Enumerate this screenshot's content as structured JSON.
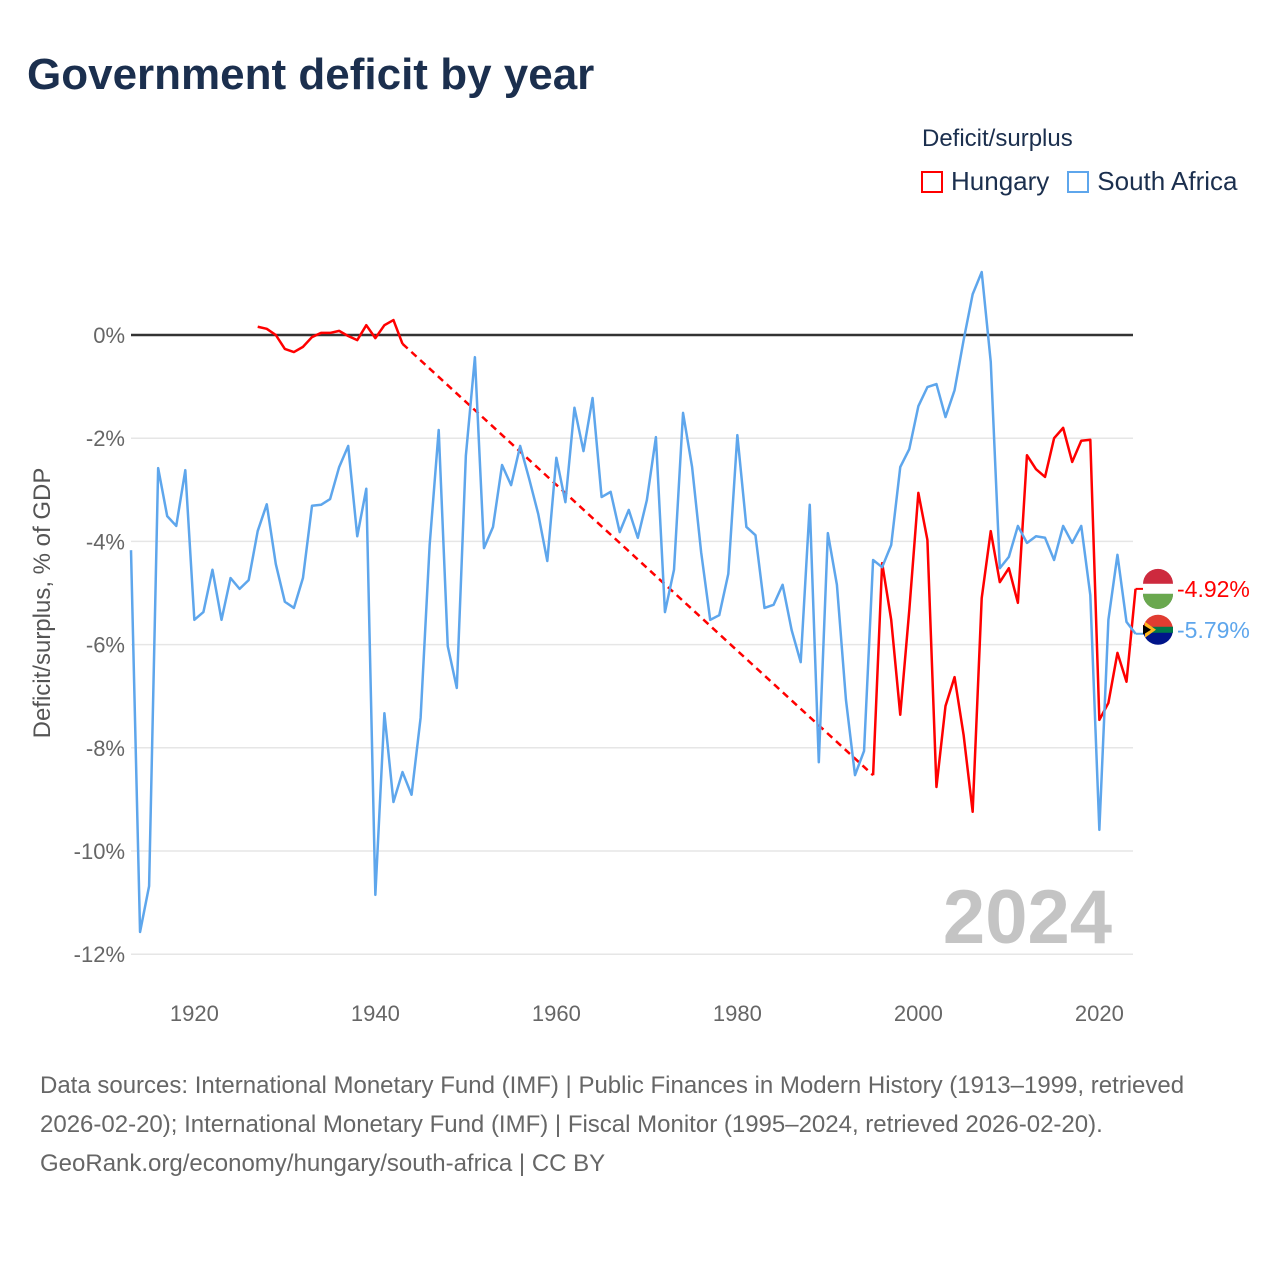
{
  "title": "Government deficit by year",
  "legend": {
    "title": "Deficit/surplus",
    "items": [
      {
        "name": "Hungary",
        "color": "#ff0000"
      },
      {
        "name": "South Africa",
        "color": "#5ea6ec"
      }
    ]
  },
  "year_watermark": "2024",
  "footer": {
    "sources": "Data sources: International Monetary Fund (IMF) | Public Finances in Modern History (1913–1999, retrieved 2026-02-20); International Monetary Fund (IMF) | Fiscal Monitor (1995–2024, retrieved 2026-02-20).",
    "credit": "GeoRank.org/economy/hungary/south-africa | CC BY"
  },
  "chart_data": {
    "type": "line",
    "title": "Government deficit by year",
    "ylabel": "Deficit/surplus, % of GDP",
    "xlim": [
      1913,
      2024
    ],
    "ylim": [
      -12.6,
      1.6
    ],
    "xticks": [
      1920,
      1940,
      1960,
      1980,
      2000,
      2020
    ],
    "yticks": [
      0,
      -2,
      -4,
      -6,
      -8,
      -10,
      -12
    ],
    "ytick_labels": [
      "0%",
      "-2%",
      "-4%",
      "-6%",
      "-8%",
      "-10%",
      "-12%"
    ],
    "end_labels": {
      "Hungary": "-4.92%",
      "South Africa": "-5.79%"
    },
    "series": [
      {
        "name": "Hungary",
        "color": "#ff0000",
        "start_year": 1927,
        "gap_style": "dashed",
        "values": [
          0.16,
          0.12,
          0,
          -0.27,
          -0.33,
          -0.23,
          -0.04,
          0.04,
          0.04,
          0.08,
          -0.02,
          -0.1,
          0.19,
          -0.06,
          0.19,
          0.29,
          -0.17,
          null,
          null,
          null,
          null,
          null,
          null,
          null,
          null,
          null,
          null,
          null,
          null,
          null,
          null,
          null,
          null,
          null,
          null,
          null,
          null,
          null,
          null,
          null,
          null,
          null,
          null,
          null,
          null,
          null,
          null,
          null,
          null,
          null,
          null,
          null,
          null,
          null,
          null,
          null,
          null,
          null,
          null,
          null,
          null,
          null,
          null,
          null,
          null,
          null,
          null,
          null,
          -8.53,
          -4.42,
          -5.52,
          -7.36,
          -5.33,
          -3.06,
          -3.97,
          -8.76,
          -7.19,
          -6.63,
          -7.75,
          -9.24,
          -5.1,
          -3.8,
          -4.79,
          -4.52,
          -5.19,
          -2.33,
          -2.6,
          -2.75,
          -2.0,
          -1.8,
          -2.46,
          -2.05,
          -2.03,
          -7.46,
          -7.13,
          -6.16,
          -6.72,
          -4.92
        ]
      },
      {
        "name": "South Africa",
        "color": "#5ea6ec",
        "start_year": 1913,
        "values": [
          -4.17,
          -11.57,
          -10.68,
          -2.58,
          -3.51,
          -3.7,
          -2.62,
          -5.52,
          -5.37,
          -4.55,
          -5.52,
          -4.71,
          -4.92,
          -4.75,
          -3.8,
          -3.28,
          -4.44,
          -5.17,
          -5.29,
          -4.71,
          -3.31,
          -3.29,
          -3.18,
          -2.56,
          -2.15,
          -3.9,
          -2.98,
          -10.85,
          -7.33,
          -9.05,
          -8.47,
          -8.91,
          -7.42,
          -4.07,
          -1.84,
          -6.03,
          -6.84,
          -2.34,
          -0.43,
          -4.13,
          -3.72,
          -2.52,
          -2.91,
          -2.15,
          -2.79,
          -3.47,
          -4.38,
          -2.38,
          -3.24,
          -1.41,
          -2.25,
          -1.22,
          -3.14,
          -3.04,
          -3.82,
          -3.39,
          -3.93,
          -3.2,
          -1.98,
          -5.37,
          -4.55,
          -1.51,
          -2.56,
          -4.21,
          -5.52,
          -5.43,
          -4.63,
          -1.94,
          -3.72,
          -3.88,
          -5.29,
          -5.23,
          -4.84,
          -5.72,
          -6.34,
          -3.29,
          -8.28,
          -3.84,
          -4.84,
          -7.07,
          -8.53,
          -8.06,
          -4.36,
          -4.5,
          -4.07,
          -2.56,
          -2.21,
          -1.38,
          -1.01,
          -0.95,
          -1.59,
          -1.07,
          -0.1,
          0.79,
          1.22,
          -0.52,
          -4.52,
          -4.3,
          -3.7,
          -4.03,
          -3.9,
          -3.93,
          -4.36,
          -3.7,
          -4.03,
          -3.7,
          -5.04,
          -9.59,
          -5.52,
          -4.26,
          -5.56,
          -5.79
        ]
      }
    ]
  }
}
